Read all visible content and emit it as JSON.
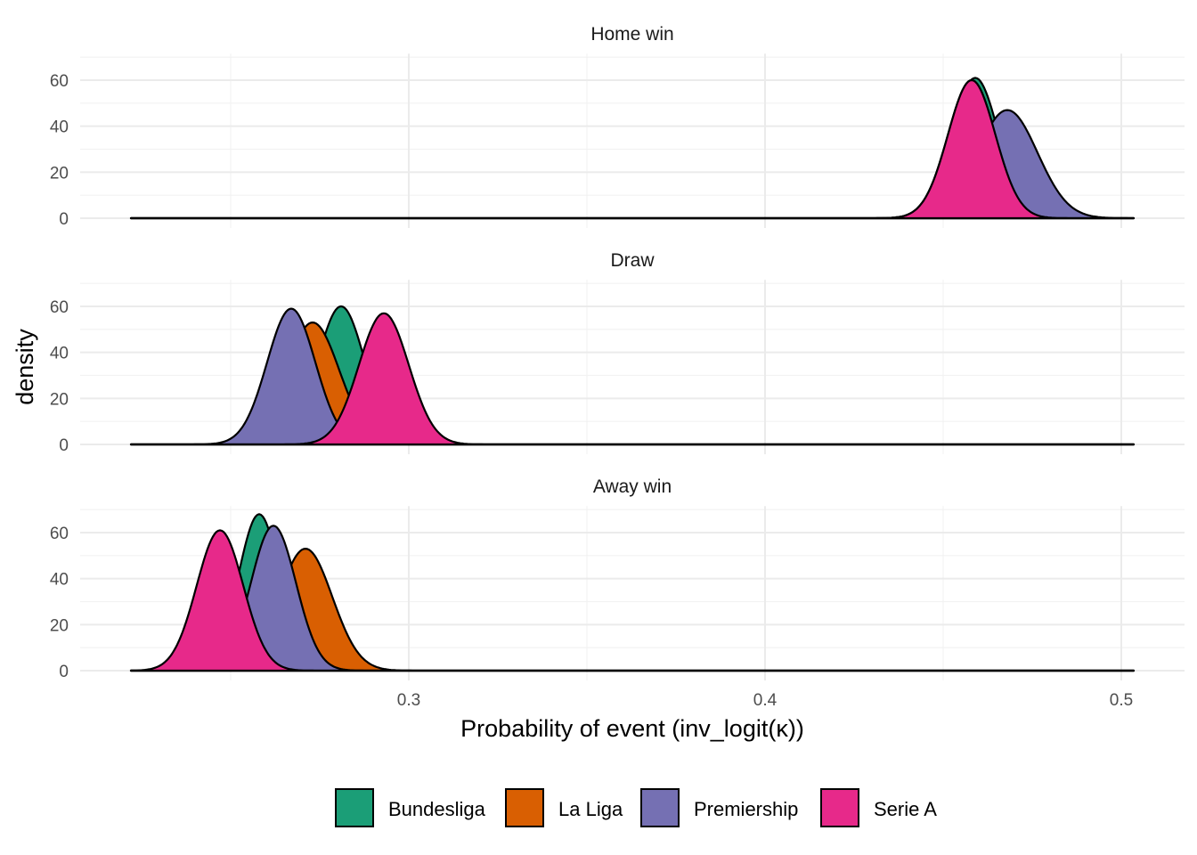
{
  "chart_data": {
    "type": "area",
    "subtype": "faceted density",
    "xlabel": "Probability of event (inv_logit(κ))",
    "ylabel": "density",
    "xlim": [
      0.222,
      0.5035
    ],
    "ylim": [
      0,
      70
    ],
    "x_ticks": [
      0.3,
      0.4,
      0.5
    ],
    "x_tick_labels": [
      "0.3",
      "0.4",
      "0.5"
    ],
    "y_ticks": [
      0,
      20,
      40,
      60
    ],
    "y_tick_labels": [
      "0",
      "20",
      "40",
      "60"
    ],
    "grid": true,
    "legend_position": "bottom",
    "legend": [
      {
        "name": "Bundesliga",
        "color": "#1B9E77"
      },
      {
        "name": "La Liga",
        "color": "#D95F02"
      },
      {
        "name": "Premiership",
        "color": "#7570B3"
      },
      {
        "name": "Serie A",
        "color": "#E7298A"
      }
    ],
    "panels": [
      {
        "title": "Home win",
        "series": [
          {
            "name": "Bundesliga",
            "mode": 0.459,
            "peak_density": 61
          },
          {
            "name": "La Liga",
            "mode": 0.458,
            "peak_density": 60
          },
          {
            "name": "Premiership",
            "mode": 0.468,
            "peak_density": 47
          },
          {
            "name": "Serie A",
            "mode": 0.458,
            "peak_density": 60
          }
        ]
      },
      {
        "title": "Draw",
        "series": [
          {
            "name": "Bundesliga",
            "mode": 0.281,
            "peak_density": 60
          },
          {
            "name": "La Liga",
            "mode": 0.273,
            "peak_density": 53
          },
          {
            "name": "Premiership",
            "mode": 0.267,
            "peak_density": 59
          },
          {
            "name": "Serie A",
            "mode": 0.293,
            "peak_density": 57
          }
        ]
      },
      {
        "title": "Away win",
        "series": [
          {
            "name": "Bundesliga",
            "mode": 0.258,
            "peak_density": 68
          },
          {
            "name": "La Liga",
            "mode": 0.271,
            "peak_density": 53
          },
          {
            "name": "Premiership",
            "mode": 0.262,
            "peak_density": 63
          },
          {
            "name": "Serie A",
            "mode": 0.247,
            "peak_density": 61
          }
        ]
      }
    ]
  }
}
